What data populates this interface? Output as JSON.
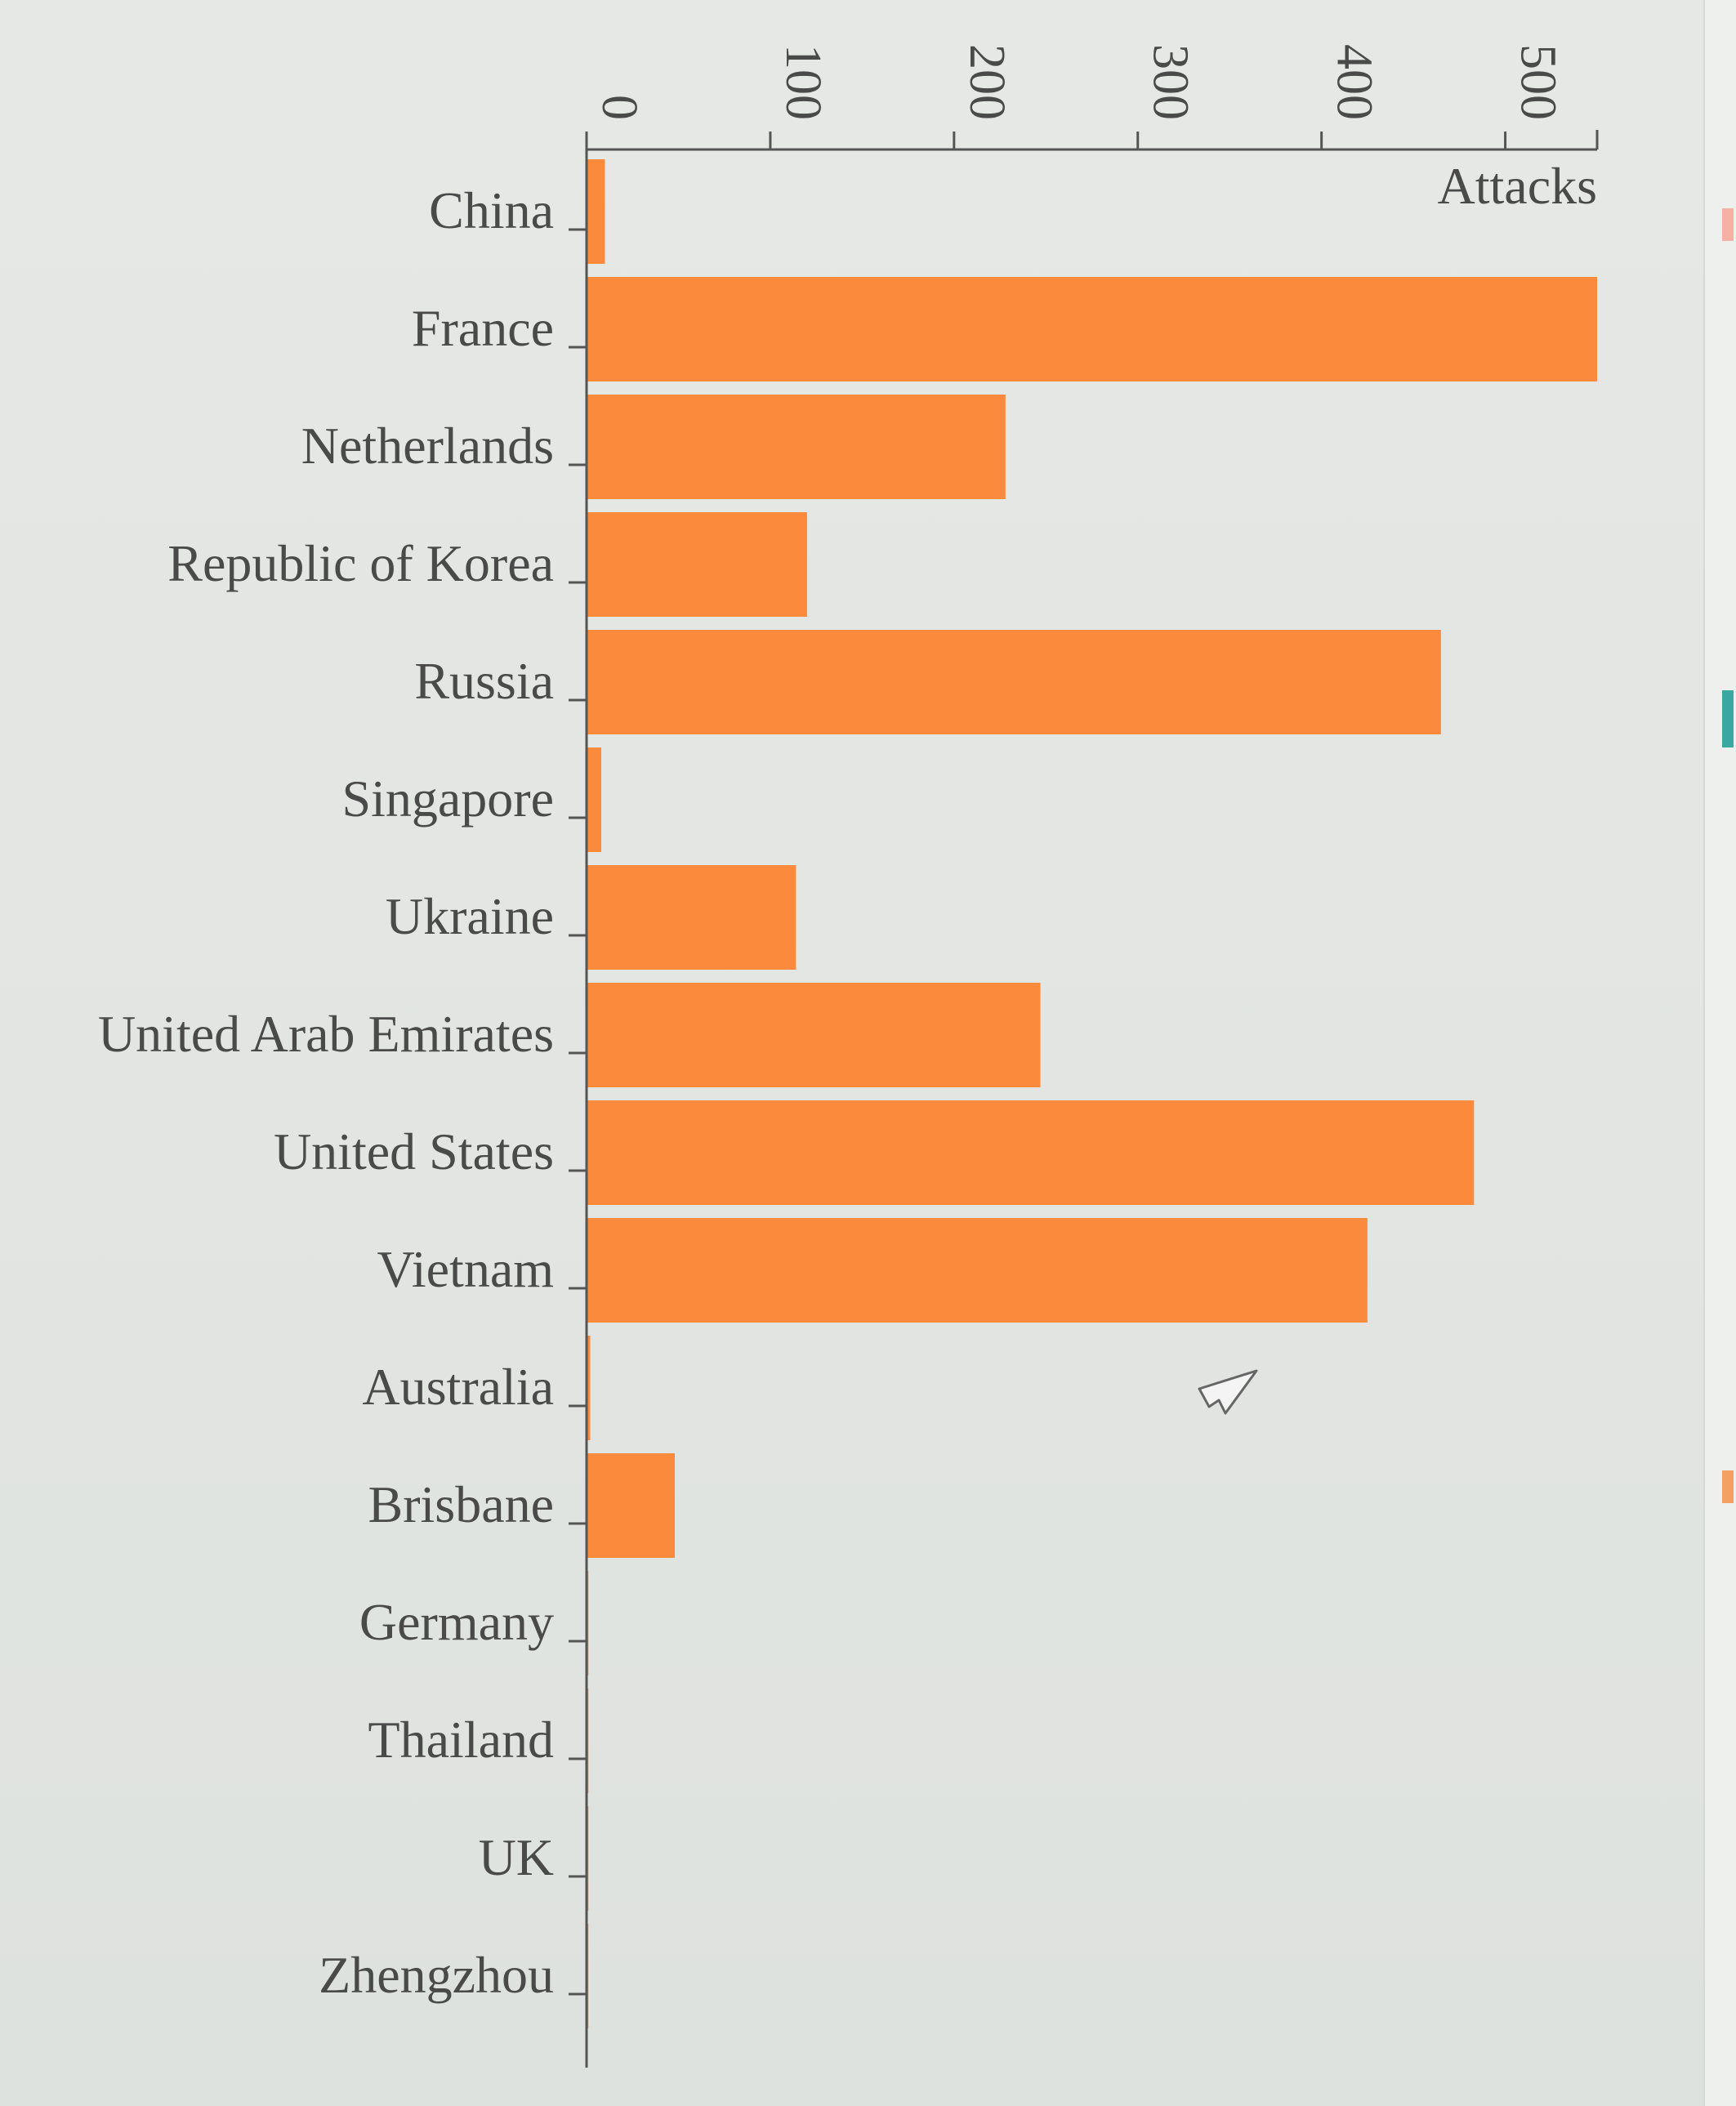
{
  "chart_data": {
    "type": "bar",
    "orientation": "horizontal",
    "title": "",
    "xlabel": "Attacks",
    "ylabel": "",
    "xlim": [
      0,
      550
    ],
    "xticks": [
      0,
      100,
      200,
      300,
      400,
      500
    ],
    "grid": false,
    "bar_color": "#fb8a3c",
    "categories": [
      "China",
      "France",
      "Netherlands",
      "Republic of Korea",
      "Russia",
      "Singapore",
      "Ukraine",
      "United Arab Emirates",
      "United States",
      "Vietnam",
      "Australia",
      "Brisbane",
      "Germany",
      "Thailand",
      "UK",
      "Zhengzhou"
    ],
    "values": [
      10,
      550,
      228,
      120,
      465,
      8,
      114,
      247,
      483,
      425,
      2,
      48,
      1,
      1,
      1,
      1
    ]
  }
}
